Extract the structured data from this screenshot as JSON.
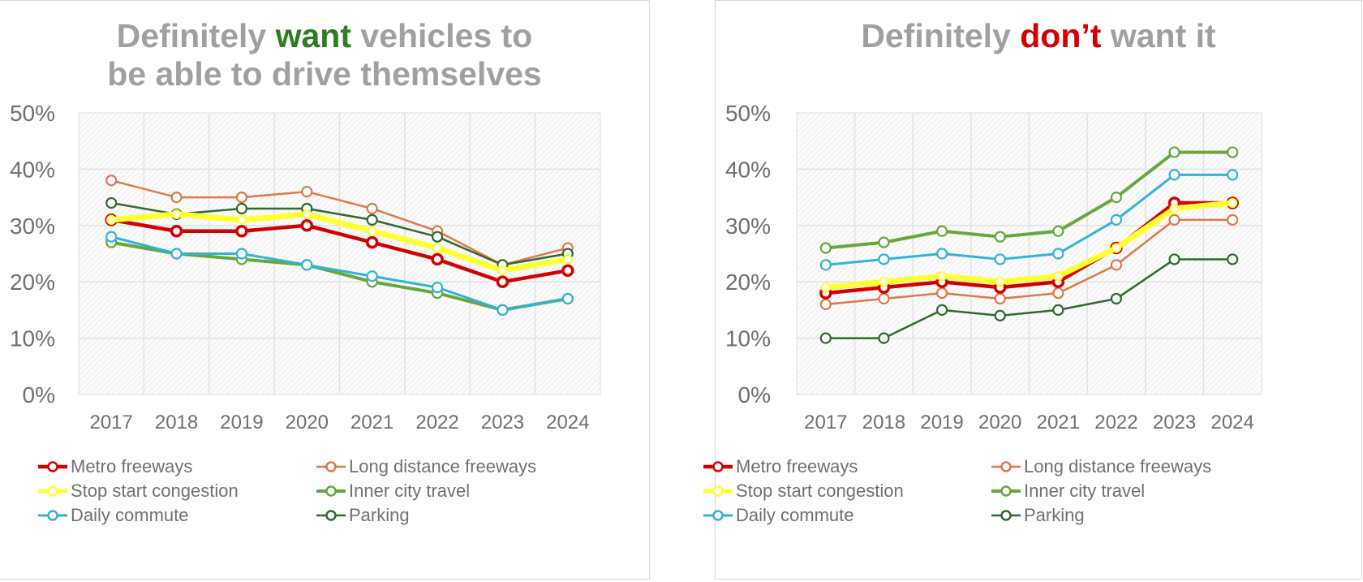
{
  "chart_data": [
    {
      "type": "line",
      "title": "Definitely want vehicles to be able to drive themselves",
      "title_parts": [
        "Definitely ",
        "want",
        " vehicles to",
        "be able to drive themselves"
      ],
      "title_highlight_color": "#2e7d22",
      "xlabel": "",
      "ylabel": "",
      "x": [
        "2017",
        "2018",
        "2019",
        "2020",
        "2021",
        "2022",
        "2023",
        "2024"
      ],
      "ylim": [
        0,
        50
      ],
      "y_ticks": [
        "0%",
        "10%",
        "20%",
        "30%",
        "40%",
        "50%"
      ],
      "grid": true,
      "legend_position": "bottom",
      "series": [
        {
          "name": "Metro freeways",
          "color": "#d40000",
          "values": [
            31,
            29,
            29,
            30,
            27,
            24,
            20,
            22
          ]
        },
        {
          "name": "Long distance freeways",
          "color": "#e0784a",
          "values": [
            38,
            35,
            35,
            36,
            33,
            29,
            23,
            26
          ]
        },
        {
          "name": "Stop start congestion",
          "color": "#ffff33",
          "values": [
            31,
            32,
            31,
            32,
            29,
            26,
            22,
            24
          ]
        },
        {
          "name": "Inner city travel",
          "color": "#66a83c",
          "values": [
            27,
            25,
            24,
            23,
            20,
            18,
            15,
            17
          ]
        },
        {
          "name": "Daily commute",
          "color": "#31b3d8",
          "values": [
            28,
            25,
            25,
            23,
            21,
            19,
            15,
            17
          ]
        },
        {
          "name": "Parking",
          "color": "#2f6b2a",
          "values": [
            34,
            32,
            33,
            33,
            31,
            28,
            23,
            25
          ]
        }
      ]
    },
    {
      "type": "line",
      "title": "Definitely don’t want it",
      "title_parts": [
        "Definitely ",
        "don’t",
        " want it"
      ],
      "title_highlight_color": "#d40000",
      "xlabel": "",
      "ylabel": "",
      "x": [
        "2017",
        "2018",
        "2019",
        "2020",
        "2021",
        "2022",
        "2023",
        "2024"
      ],
      "ylim": [
        0,
        50
      ],
      "y_ticks": [
        "0%",
        "10%",
        "20%",
        "30%",
        "40%",
        "50%"
      ],
      "grid": true,
      "legend_position": "bottom",
      "series": [
        {
          "name": "Metro freeways",
          "color": "#d40000",
          "values": [
            18,
            19,
            20,
            19,
            20,
            26,
            34,
            34
          ]
        },
        {
          "name": "Long distance freeways",
          "color": "#e0784a",
          "values": [
            16,
            17,
            18,
            17,
            18,
            23,
            31,
            31
          ]
        },
        {
          "name": "Stop start congestion",
          "color": "#ffff33",
          "values": [
            19,
            20,
            21,
            20,
            21,
            26,
            33,
            34
          ]
        },
        {
          "name": "Inner city travel",
          "color": "#66a83c",
          "values": [
            26,
            27,
            29,
            28,
            29,
            35,
            43,
            43
          ]
        },
        {
          "name": "Daily commute",
          "color": "#31b3d8",
          "values": [
            23,
            24,
            25,
            24,
            25,
            31,
            39,
            39
          ]
        },
        {
          "name": "Parking",
          "color": "#2f6b2a",
          "values": [
            10,
            10,
            15,
            14,
            15,
            17,
            24,
            24
          ]
        }
      ]
    }
  ]
}
